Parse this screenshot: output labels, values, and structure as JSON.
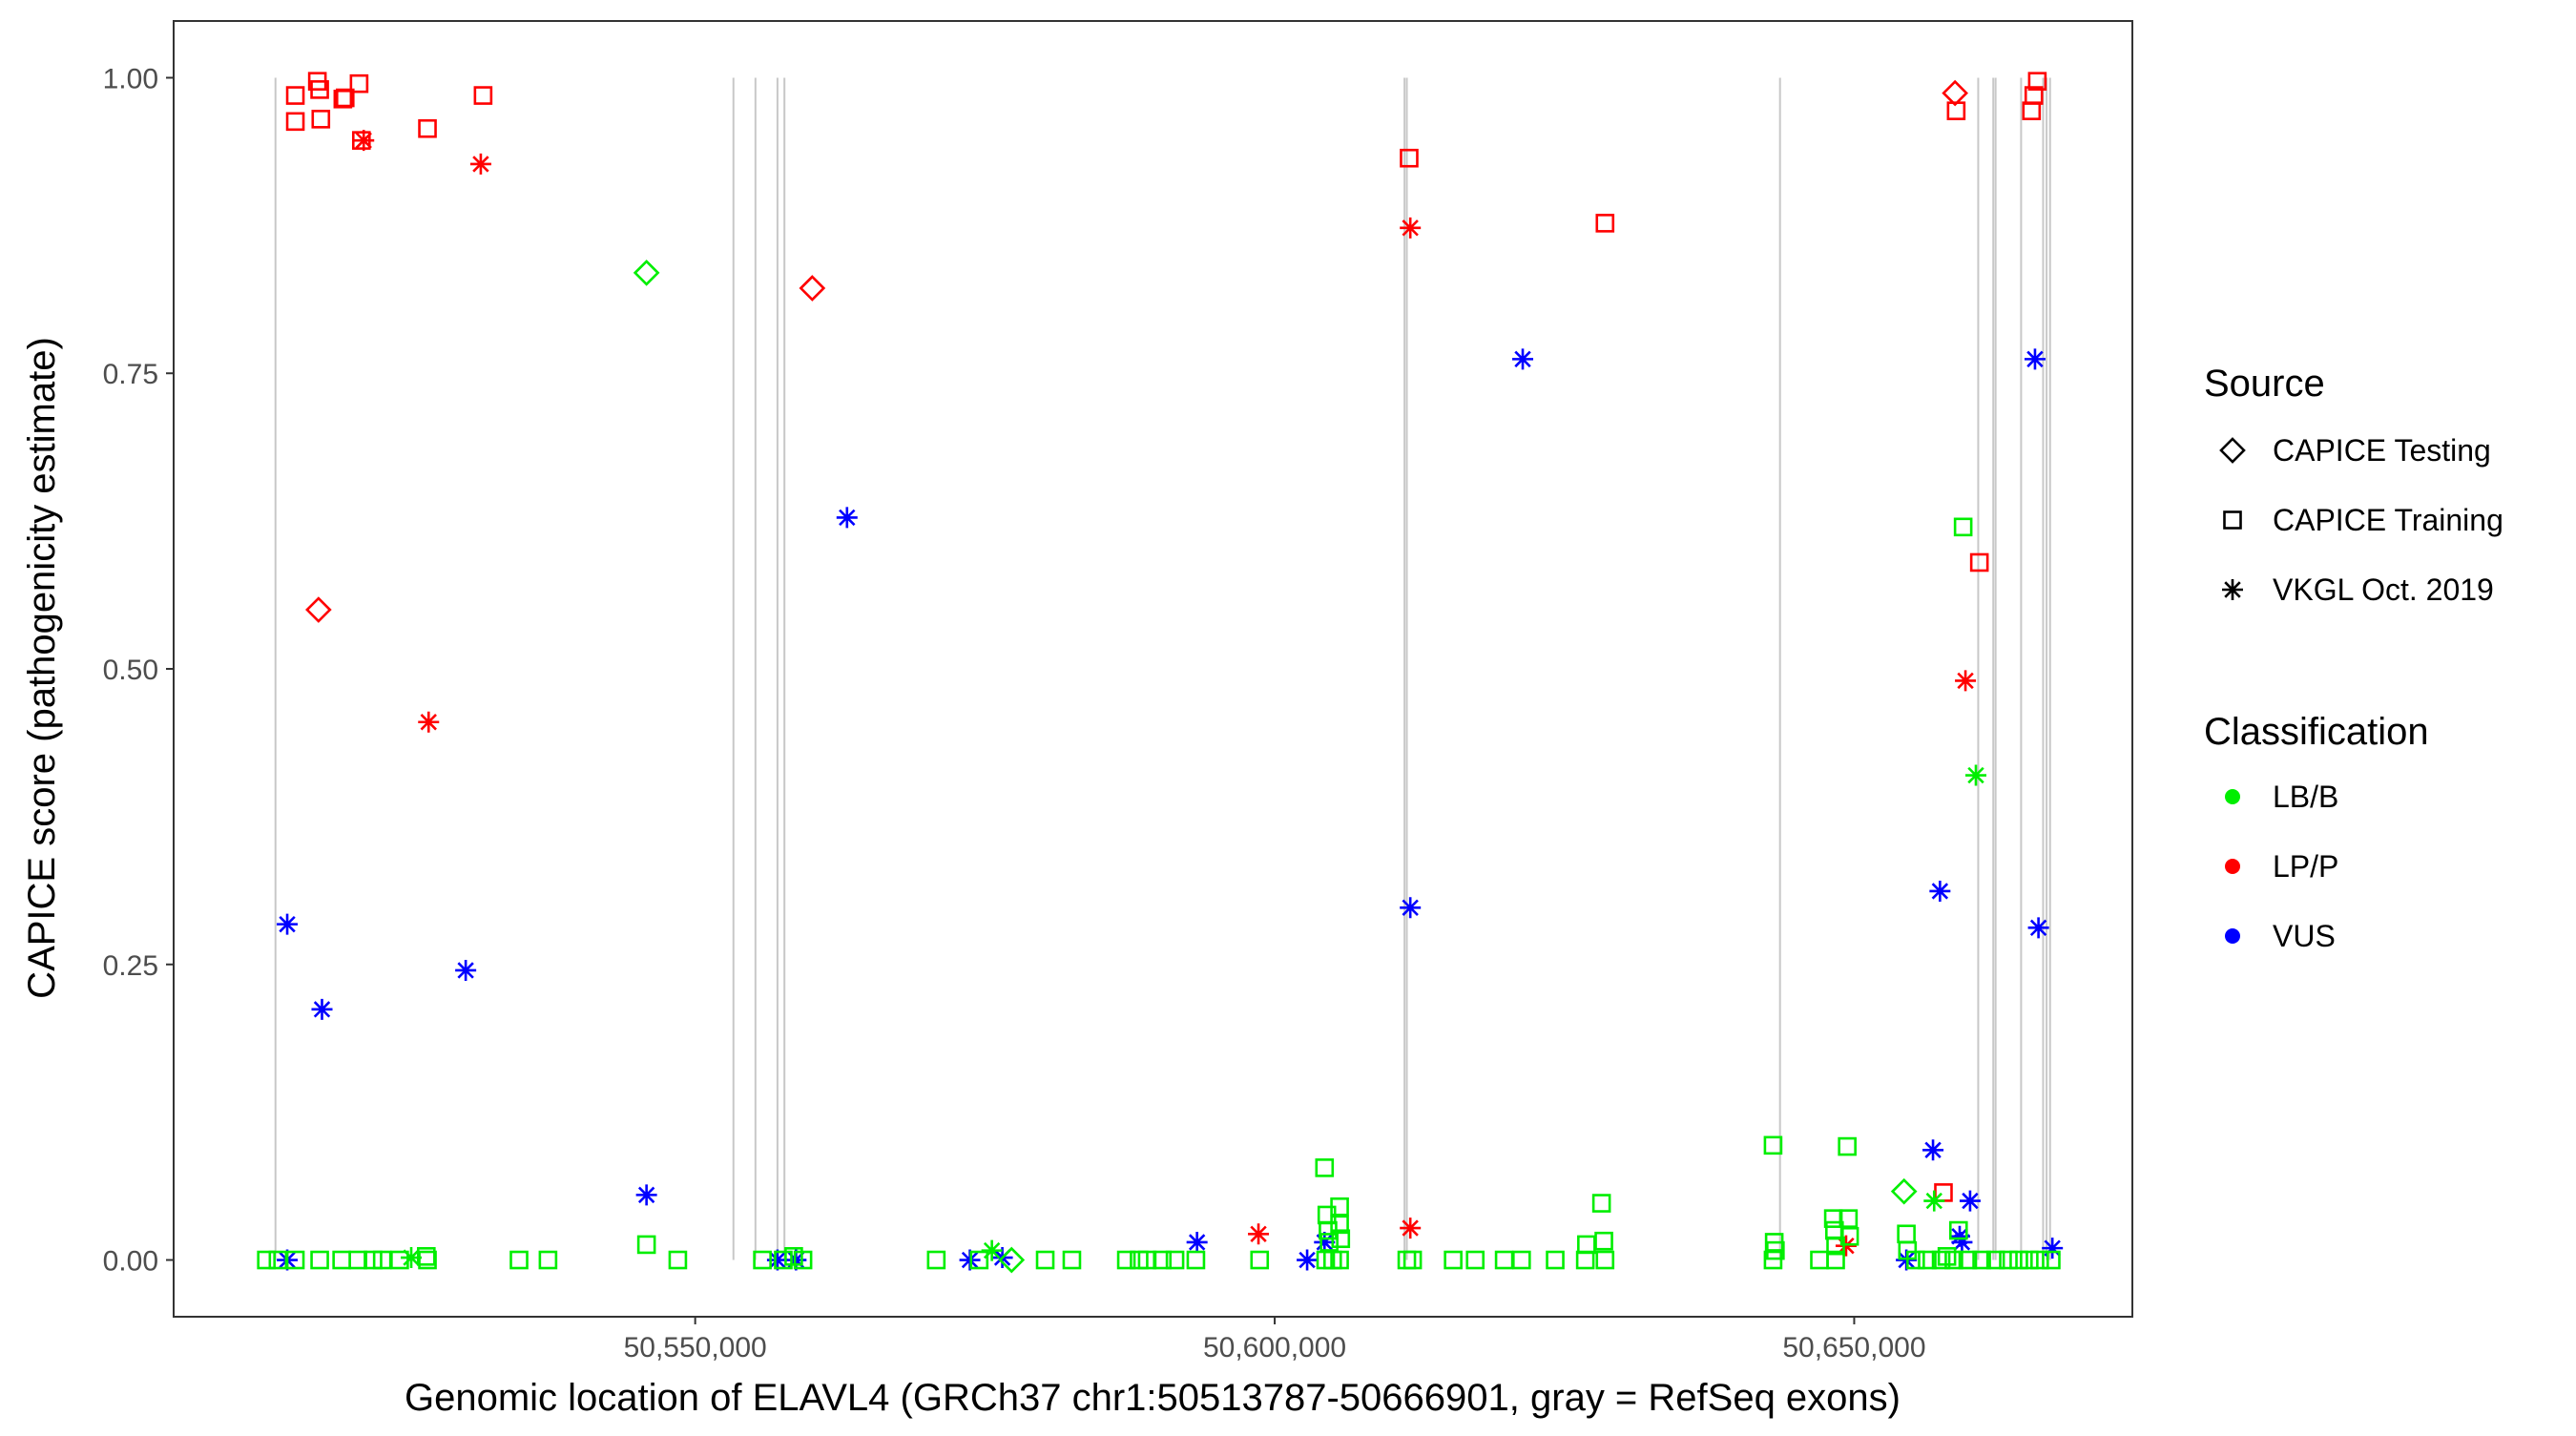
{
  "chart_data": {
    "type": "scatter",
    "title": "",
    "xlabel": "Genomic location of ELAVL4 (GRCh37 chr1:50513787-50666901, gray = RefSeq exons)",
    "ylabel": "CAPICE score (pathogenicity estimate)",
    "xlim": [
      50505000,
      50674000
    ],
    "ylim": [
      -0.048,
      1.048
    ],
    "x_ticks": [
      50550000,
      50600000,
      50650000
    ],
    "x_tick_labels": [
      "50,550,000",
      "50,600,000",
      "50,650,000"
    ],
    "y_ticks": [
      0,
      0.25,
      0.5,
      0.75,
      1.0
    ],
    "y_tick_labels": [
      "0.00",
      "0.25",
      "0.50",
      "0.75",
      "1.00"
    ],
    "grid": false,
    "legend_position": "right",
    "exons": [
      50513787,
      50553300,
      50555200,
      50557100,
      50557700,
      50611200,
      50611400,
      50643600,
      50660700,
      50662000,
      50662200,
      50664400,
      50666300,
      50666600,
      50666900
    ],
    "legends": [
      {
        "title": "Source",
        "kind": "shape",
        "items": [
          {
            "label": "CAPICE Testing",
            "shape": "diamond"
          },
          {
            "label": "CAPICE Training",
            "shape": "square"
          },
          {
            "label": "VKGL Oct. 2019",
            "shape": "asterisk"
          }
        ]
      },
      {
        "title": "Classification",
        "kind": "color",
        "items": [
          {
            "label": "LB/B",
            "color": "#00ee00"
          },
          {
            "label": "LP/P",
            "color": "#ff0000"
          },
          {
            "label": "VUS",
            "color": "#0000ff"
          }
        ]
      }
    ],
    "series": [
      {
        "name": "LP/P",
        "color": "#ff0000",
        "points": [
          {
            "x": 50515500,
            "y": 0.985,
            "shape": "square"
          },
          {
            "x": 50515500,
            "y": 0.963,
            "shape": "square"
          },
          {
            "x": 50517400,
            "y": 0.997,
            "shape": "square"
          },
          {
            "x": 50517600,
            "y": 0.99,
            "shape": "square"
          },
          {
            "x": 50517700,
            "y": 0.965,
            "shape": "square"
          },
          {
            "x": 50519600,
            "y": 0.982,
            "shape": "square"
          },
          {
            "x": 50519800,
            "y": 0.983,
            "shape": "square"
          },
          {
            "x": 50521000,
            "y": 0.995,
            "shape": "square"
          },
          {
            "x": 50521200,
            "y": 0.947,
            "shape": "square"
          },
          {
            "x": 50521400,
            "y": 0.947,
            "shape": "asterisk"
          },
          {
            "x": 50526900,
            "y": 0.957,
            "shape": "square"
          },
          {
            "x": 50531700,
            "y": 0.985,
            "shape": "square"
          },
          {
            "x": 50531500,
            "y": 0.927,
            "shape": "asterisk"
          },
          {
            "x": 50517500,
            "y": 0.55,
            "shape": "diamond"
          },
          {
            "x": 50527000,
            "y": 0.455,
            "shape": "asterisk"
          },
          {
            "x": 50560100,
            "y": 0.822,
            "shape": "diamond"
          },
          {
            "x": 50598600,
            "y": 0.022,
            "shape": "asterisk"
          },
          {
            "x": 50611600,
            "y": 0.932,
            "shape": "square"
          },
          {
            "x": 50611700,
            "y": 0.873,
            "shape": "asterisk"
          },
          {
            "x": 50611700,
            "y": 0.027,
            "shape": "asterisk"
          },
          {
            "x": 50628500,
            "y": 0.877,
            "shape": "square"
          },
          {
            "x": 50649300,
            "y": 0.012,
            "shape": "asterisk"
          },
          {
            "x": 50658700,
            "y": 0.987,
            "shape": "diamond"
          },
          {
            "x": 50658800,
            "y": 0.972,
            "shape": "square"
          },
          {
            "x": 50665300,
            "y": 0.972,
            "shape": "square"
          },
          {
            "x": 50665500,
            "y": 0.985,
            "shape": "square"
          },
          {
            "x": 50665800,
            "y": 0.997,
            "shape": "square"
          },
          {
            "x": 50659600,
            "y": 0.49,
            "shape": "asterisk"
          },
          {
            "x": 50660800,
            "y": 0.59,
            "shape": "square"
          },
          {
            "x": 50657700,
            "y": 0.057,
            "shape": "square"
          }
        ]
      },
      {
        "name": "VUS",
        "color": "#0000ff",
        "points": [
          {
            "x": 50514800,
            "y": 0.284,
            "shape": "asterisk"
          },
          {
            "x": 50517800,
            "y": 0.212,
            "shape": "asterisk"
          },
          {
            "x": 50530200,
            "y": 0.245,
            "shape": "asterisk"
          },
          {
            "x": 50514800,
            "y": 0.0,
            "shape": "asterisk"
          },
          {
            "x": 50545800,
            "y": 0.055,
            "shape": "asterisk"
          },
          {
            "x": 50563100,
            "y": 0.628,
            "shape": "asterisk"
          },
          {
            "x": 50557100,
            "y": 0.0,
            "shape": "asterisk"
          },
          {
            "x": 50558700,
            "y": 0.0,
            "shape": "asterisk"
          },
          {
            "x": 50573700,
            "y": 0.0,
            "shape": "asterisk"
          },
          {
            "x": 50576500,
            "y": 0.002,
            "shape": "asterisk"
          },
          {
            "x": 50593300,
            "y": 0.015,
            "shape": "asterisk"
          },
          {
            "x": 50602800,
            "y": 0.0,
            "shape": "asterisk"
          },
          {
            "x": 50604300,
            "y": 0.015,
            "shape": "asterisk"
          },
          {
            "x": 50611700,
            "y": 0.298,
            "shape": "asterisk"
          },
          {
            "x": 50621400,
            "y": 0.762,
            "shape": "asterisk"
          },
          {
            "x": 50654500,
            "y": 0.0,
            "shape": "asterisk"
          },
          {
            "x": 50656800,
            "y": 0.093,
            "shape": "asterisk"
          },
          {
            "x": 50657400,
            "y": 0.312,
            "shape": "asterisk"
          },
          {
            "x": 50659100,
            "y": 0.02,
            "shape": "asterisk"
          },
          {
            "x": 50659300,
            "y": 0.015,
            "shape": "asterisk"
          },
          {
            "x": 50660000,
            "y": 0.05,
            "shape": "asterisk"
          },
          {
            "x": 50665600,
            "y": 0.762,
            "shape": "asterisk"
          },
          {
            "x": 50665900,
            "y": 0.281,
            "shape": "asterisk"
          },
          {
            "x": 50667100,
            "y": 0.01,
            "shape": "asterisk"
          }
        ]
      },
      {
        "name": "LB/B",
        "color": "#00ee00",
        "points": [
          {
            "x": 50545800,
            "y": 0.835,
            "shape": "diamond"
          },
          {
            "x": 50659400,
            "y": 0.62,
            "shape": "square"
          },
          {
            "x": 50660500,
            "y": 0.41,
            "shape": "asterisk"
          },
          {
            "x": 50604300,
            "y": 0.078,
            "shape": "square"
          },
          {
            "x": 50604500,
            "y": 0.038,
            "shape": "square"
          },
          {
            "x": 50605600,
            "y": 0.045,
            "shape": "square"
          },
          {
            "x": 50604600,
            "y": 0.025,
            "shape": "square"
          },
          {
            "x": 50604700,
            "y": 0.015,
            "shape": "square"
          },
          {
            "x": 50605600,
            "y": 0.03,
            "shape": "square"
          },
          {
            "x": 50605700,
            "y": 0.018,
            "shape": "square"
          },
          {
            "x": 50628200,
            "y": 0.048,
            "shape": "square"
          },
          {
            "x": 50626900,
            "y": 0.013,
            "shape": "square"
          },
          {
            "x": 50628400,
            "y": 0.016,
            "shape": "square"
          },
          {
            "x": 50643000,
            "y": 0.097,
            "shape": "square"
          },
          {
            "x": 50643100,
            "y": 0.015,
            "shape": "square"
          },
          {
            "x": 50643200,
            "y": 0.008,
            "shape": "square"
          },
          {
            "x": 50648200,
            "y": 0.035,
            "shape": "square"
          },
          {
            "x": 50648300,
            "y": 0.025,
            "shape": "square"
          },
          {
            "x": 50648400,
            "y": 0.012,
            "shape": "square"
          },
          {
            "x": 50649400,
            "y": 0.096,
            "shape": "square"
          },
          {
            "x": 50649500,
            "y": 0.035,
            "shape": "square"
          },
          {
            "x": 50649600,
            "y": 0.02,
            "shape": "square"
          },
          {
            "x": 50654300,
            "y": 0.058,
            "shape": "diamond"
          },
          {
            "x": 50654500,
            "y": 0.022,
            "shape": "square"
          },
          {
            "x": 50654600,
            "y": 0.008,
            "shape": "square"
          },
          {
            "x": 50656900,
            "y": 0.05,
            "shape": "asterisk"
          },
          {
            "x": 50659000,
            "y": 0.025,
            "shape": "square"
          },
          {
            "x": 50545800,
            "y": 0.013,
            "shape": "square"
          },
          {
            "x": 50526800,
            "y": 0.003,
            "shape": "square"
          },
          {
            "x": 50575600,
            "y": 0.008,
            "shape": "asterisk"
          },
          {
            "x": 50513000,
            "y": 0.0,
            "shape": "square"
          },
          {
            "x": 50514000,
            "y": 0.0,
            "shape": "square"
          },
          {
            "x": 50515500,
            "y": 0.0,
            "shape": "square"
          },
          {
            "x": 50517600,
            "y": 0.0,
            "shape": "square"
          },
          {
            "x": 50519500,
            "y": 0.0,
            "shape": "square"
          },
          {
            "x": 50520900,
            "y": 0.0,
            "shape": "square"
          },
          {
            "x": 50522200,
            "y": 0.0,
            "shape": "square"
          },
          {
            "x": 50523000,
            "y": 0.0,
            "shape": "square"
          },
          {
            "x": 50524500,
            "y": 0.0,
            "shape": "square"
          },
          {
            "x": 50525500,
            "y": 0.002,
            "shape": "asterisk"
          },
          {
            "x": 50526900,
            "y": 0.0,
            "shape": "square"
          },
          {
            "x": 50534800,
            "y": 0.0,
            "shape": "square"
          },
          {
            "x": 50537300,
            "y": 0.0,
            "shape": "square"
          },
          {
            "x": 50548500,
            "y": 0.0,
            "shape": "square"
          },
          {
            "x": 50555800,
            "y": 0.0,
            "shape": "square"
          },
          {
            "x": 50557600,
            "y": 0.0,
            "shape": "square"
          },
          {
            "x": 50558500,
            "y": 0.003,
            "shape": "square"
          },
          {
            "x": 50559300,
            "y": 0.0,
            "shape": "square"
          },
          {
            "x": 50570800,
            "y": 0.0,
            "shape": "square"
          },
          {
            "x": 50574500,
            "y": 0.0,
            "shape": "square"
          },
          {
            "x": 50577300,
            "y": 0.0,
            "shape": "diamond"
          },
          {
            "x": 50580200,
            "y": 0.0,
            "shape": "square"
          },
          {
            "x": 50582500,
            "y": 0.0,
            "shape": "square"
          },
          {
            "x": 50587200,
            "y": 0.0,
            "shape": "square"
          },
          {
            "x": 50588300,
            "y": 0.0,
            "shape": "square"
          },
          {
            "x": 50589000,
            "y": 0.0,
            "shape": "square"
          },
          {
            "x": 50590300,
            "y": 0.0,
            "shape": "square"
          },
          {
            "x": 50591400,
            "y": 0.0,
            "shape": "square"
          },
          {
            "x": 50593200,
            "y": 0.0,
            "shape": "square"
          },
          {
            "x": 50598700,
            "y": 0.0,
            "shape": "square"
          },
          {
            "x": 50604400,
            "y": 0.0,
            "shape": "square"
          },
          {
            "x": 50605000,
            "y": 0.0,
            "shape": "square"
          },
          {
            "x": 50605600,
            "y": 0.0,
            "shape": "square"
          },
          {
            "x": 50611400,
            "y": 0.0,
            "shape": "square"
          },
          {
            "x": 50611900,
            "y": 0.0,
            "shape": "square"
          },
          {
            "x": 50615400,
            "y": 0.0,
            "shape": "square"
          },
          {
            "x": 50617300,
            "y": 0.0,
            "shape": "square"
          },
          {
            "x": 50619800,
            "y": 0.0,
            "shape": "square"
          },
          {
            "x": 50621300,
            "y": 0.0,
            "shape": "square"
          },
          {
            "x": 50624200,
            "y": 0.0,
            "shape": "square"
          },
          {
            "x": 50626800,
            "y": 0.0,
            "shape": "square"
          },
          {
            "x": 50628500,
            "y": 0.0,
            "shape": "square"
          },
          {
            "x": 50643000,
            "y": 0.0,
            "shape": "square"
          },
          {
            "x": 50647000,
            "y": 0.0,
            "shape": "square"
          },
          {
            "x": 50648400,
            "y": 0.0,
            "shape": "square"
          },
          {
            "x": 50655300,
            "y": 0.0,
            "shape": "square"
          },
          {
            "x": 50656300,
            "y": 0.0,
            "shape": "square"
          },
          {
            "x": 50657500,
            "y": 0.0,
            "shape": "square"
          },
          {
            "x": 50658000,
            "y": 0.003,
            "shape": "square"
          },
          {
            "x": 50658600,
            "y": 0.0,
            "shape": "square"
          },
          {
            "x": 50659800,
            "y": 0.0,
            "shape": "square"
          },
          {
            "x": 50661000,
            "y": 0.0,
            "shape": "square"
          },
          {
            "x": 50662200,
            "y": 0.0,
            "shape": "square"
          },
          {
            "x": 50663300,
            "y": 0.0,
            "shape": "square"
          },
          {
            "x": 50664200,
            "y": 0.0,
            "shape": "square"
          },
          {
            "x": 50665100,
            "y": 0.0,
            "shape": "square"
          },
          {
            "x": 50666000,
            "y": 0.0,
            "shape": "square"
          },
          {
            "x": 50667000,
            "y": 0.0,
            "shape": "square"
          }
        ]
      }
    ]
  }
}
